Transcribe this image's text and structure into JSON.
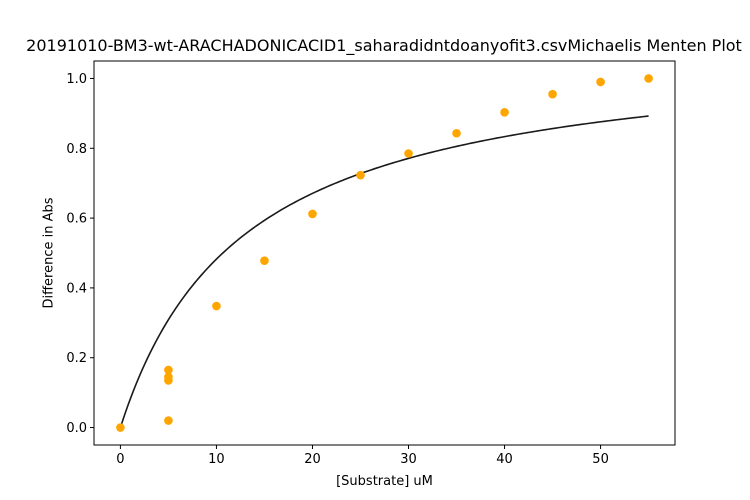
{
  "chart_data": {
    "type": "scatter",
    "title": "20191010-BM3-wt-ARACHADONICACID1_saharadidntdoanyofit3.csvMichaelis Menten Plot",
    "xlabel": "[Substrate] uM",
    "ylabel": "Difference in Abs",
    "xlim": [
      -2.75,
      57.75
    ],
    "ylim": [
      -0.05,
      1.05
    ],
    "xticks": [
      0,
      10,
      20,
      30,
      40,
      50
    ],
    "yticks": [
      0.0,
      0.2,
      0.4,
      0.6,
      0.8,
      1.0
    ],
    "xtick_labels": [
      "0",
      "10",
      "20",
      "30",
      "40",
      "50"
    ],
    "ytick_labels": [
      "0.0",
      "0.2",
      "0.4",
      "0.6",
      "0.8",
      "1.0"
    ],
    "grid": false,
    "points": {
      "color": "#ffa500",
      "x": [
        0,
        5,
        5,
        5,
        5,
        10,
        15,
        20,
        25,
        30,
        35,
        40,
        45,
        50,
        55
      ],
      "y": [
        0.0,
        0.02,
        0.135,
        0.145,
        0.165,
        0.348,
        0.478,
        0.612,
        0.723,
        0.785,
        0.843,
        0.903,
        0.955,
        0.99,
        1.0
      ]
    },
    "fit": {
      "color": "#1a1a1a",
      "model": "michaelis-menten",
      "vmax": 1.1,
      "km": 12.8,
      "x_range": [
        0,
        55
      ]
    }
  }
}
